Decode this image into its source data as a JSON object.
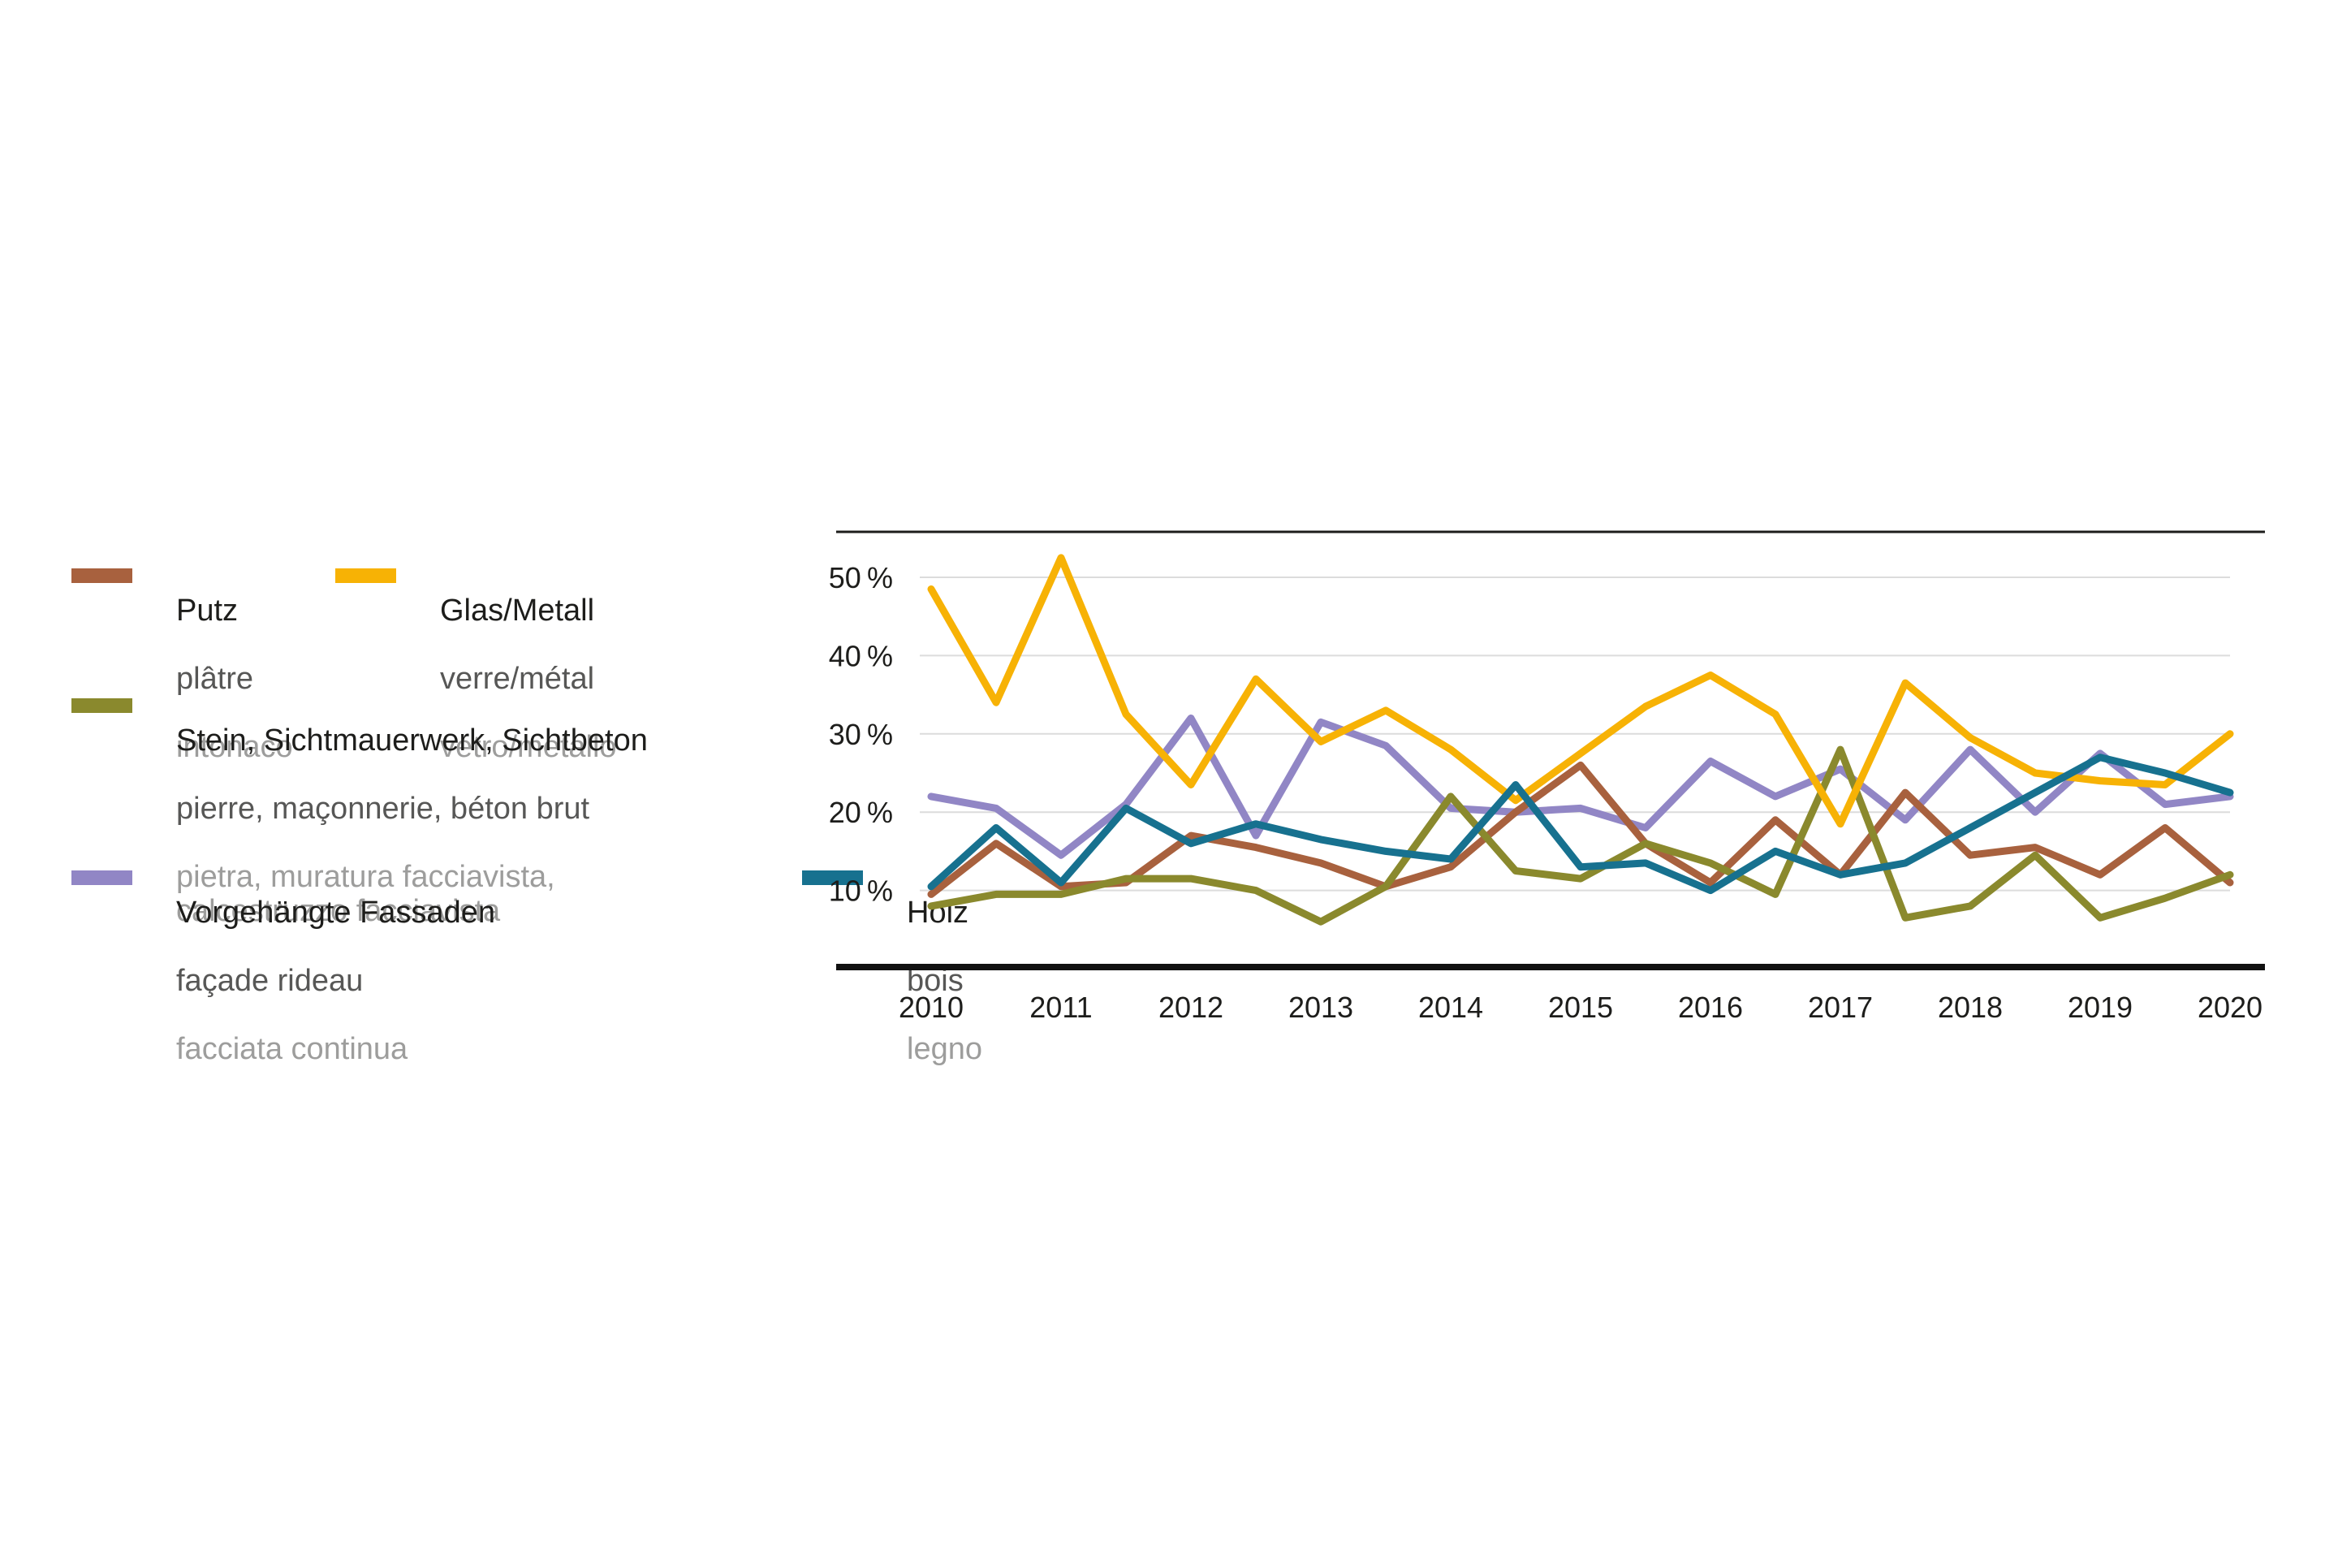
{
  "chart_data": {
    "type": "line",
    "x": [
      2010,
      2010.5,
      2011,
      2011.5,
      2012,
      2012.5,
      2013,
      2013.5,
      2014,
      2014.5,
      2015,
      2015.5,
      2016,
      2016.5,
      2017,
      2017.5,
      2018,
      2018.5,
      2019,
      2019.5,
      2020
    ],
    "x_tick_labels": [
      "2010",
      "2011",
      "2012",
      "2013",
      "2014",
      "2015",
      "2016",
      "2017",
      "2018",
      "2019",
      "2020"
    ],
    "x_tick_years": [
      2010,
      2011,
      2012,
      2013,
      2014,
      2015,
      2016,
      2017,
      2018,
      2019,
      2020
    ],
    "y_ticks": [
      {
        "value": 10,
        "label": "10 %"
      },
      {
        "value": 20,
        "label": "20 %"
      },
      {
        "value": 30,
        "label": "30 %"
      },
      {
        "value": 40,
        "label": "40 %"
      },
      {
        "value": 50,
        "label": "50 %"
      }
    ],
    "ylim": [
      0,
      54
    ],
    "xlabel": "",
    "ylabel": "",
    "grid": true,
    "legend_position": "left",
    "series": [
      {
        "name": "Putz",
        "color": "#A8613E",
        "values": [
          9.5,
          16,
          10.5,
          11,
          17,
          15.5,
          13.5,
          10.5,
          13,
          20,
          26,
          16,
          11,
          19,
          12,
          22.5,
          14.5,
          15.5,
          12,
          18,
          11
        ]
      },
      {
        "name": "Glas/Metall",
        "color": "#F7B205",
        "values": [
          48.5,
          34,
          52.5,
          32.5,
          23.5,
          37,
          29,
          33,
          28,
          21.5,
          27.5,
          33.5,
          37.5,
          32.5,
          18.5,
          36.5,
          29.5,
          25,
          24,
          23.5,
          30
        ]
      },
      {
        "name": "Stein, Sichtmauerwerk, Sichtbeton",
        "color": "#8A892D",
        "values": [
          8,
          9.5,
          9.5,
          11.5,
          11.5,
          10,
          6,
          10.5,
          22,
          12.5,
          11.5,
          16,
          13.5,
          9.5,
          28,
          6.5,
          8,
          14.5,
          6.5,
          9,
          12
        ]
      },
      {
        "name": "Vorgehängte Fassaden",
        "color": "#9186C5",
        "values": [
          22,
          20.5,
          14.5,
          21,
          32,
          17,
          31.5,
          28.5,
          20.5,
          20,
          20.5,
          18,
          26.5,
          22,
          25.5,
          19,
          28,
          20,
          27.5,
          21,
          22
        ]
      },
      {
        "name": "Holz",
        "color": "#17718F",
        "values": [
          10.5,
          18,
          11,
          20.5,
          16,
          18.5,
          16.5,
          15,
          14,
          23.5,
          13,
          13.5,
          10,
          15,
          12,
          13.5,
          18,
          22.5,
          27,
          25,
          22.5
        ]
      }
    ],
    "draw_order": [
      3,
      0,
      2,
      1,
      4
    ]
  },
  "legend": {
    "items": [
      {
        "de": "Putz",
        "fr": "plâtre",
        "it": "intonaco",
        "color": "#A8613E"
      },
      {
        "de": "Glas/Metall",
        "fr": "verre/métal",
        "it": "vetro/metallo",
        "color": "#F7B205"
      },
      {
        "de": "Stein, Sichtmauerwerk, Sichtbeton",
        "fr": "pierre, maçonnerie, béton brut",
        "it": "pietra, muratura facciavista, calcestruzzo facciavista",
        "color": "#8A892D"
      },
      {
        "de": "Vorgehängte Fassaden",
        "fr": "façade rideau",
        "it": "facciata continua",
        "color": "#9186C5"
      },
      {
        "de": "Holz",
        "fr": "bois",
        "it": "legno",
        "color": "#17718F"
      }
    ]
  },
  "colors": {
    "background": "#ffffff",
    "gridline": "#dcdcdc",
    "frame_top": "#1d1d1b",
    "axis_bottom": "#111111",
    "label_de": "#1d1d1b",
    "label_fr": "#575756",
    "label_it": "#9d9d9c"
  }
}
